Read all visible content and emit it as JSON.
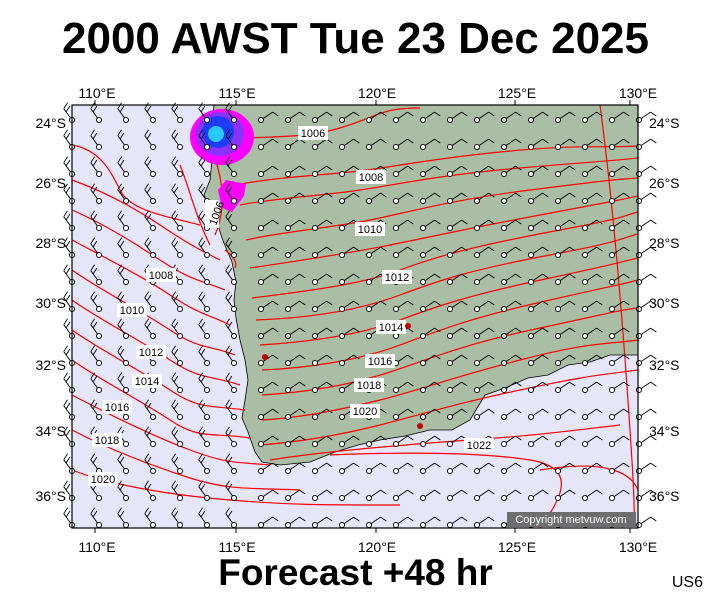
{
  "header": {
    "title": "2000 AWST Tue 23 Dec 2025"
  },
  "footer": {
    "forecast_label": "Forecast +48 hr",
    "product_code": "US6"
  },
  "map": {
    "copyright": "Copyright metvuw.com",
    "lon_ticks": [
      "110°E",
      "115°E",
      "120°E",
      "125°E",
      "130°E"
    ],
    "lat_ticks": [
      "24°S",
      "26°S",
      "28°S",
      "30°S",
      "32°S",
      "34°S",
      "36°S"
    ],
    "isobar_labels": [
      "1006",
      "1008",
      "1010",
      "1012",
      "1014",
      "1016",
      "1018",
      "1020",
      "1022",
      "1006",
      "1008",
      "1010",
      "1012",
      "1014",
      "1016",
      "1018",
      "1020"
    ],
    "colors": {
      "ocean": "#e6e6fa",
      "land": "#a9bea4",
      "isobar": "#ff0000",
      "rain_magenta": "#ff00ff",
      "rain_blue": "#1e3cff",
      "rain_cyan": "#28c8ff",
      "copyright_bg": "#6e6e6e"
    }
  }
}
